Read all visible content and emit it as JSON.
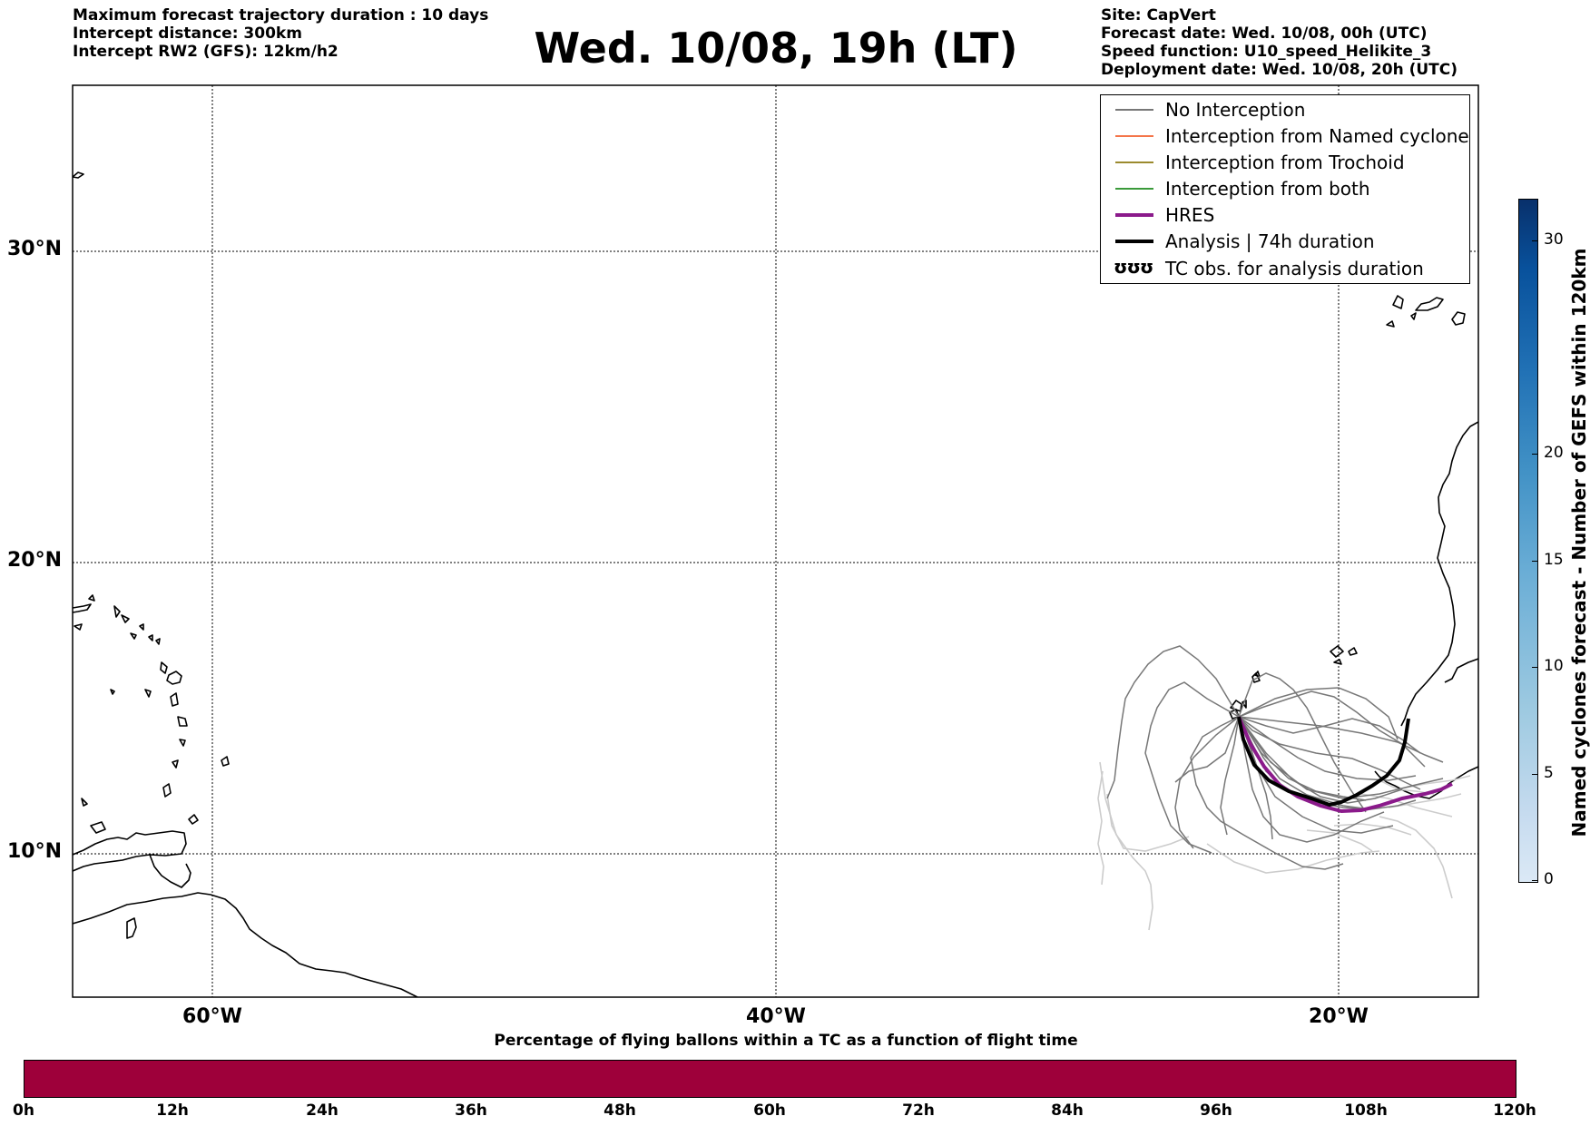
{
  "header": {
    "left_lines": [
      "Maximum forecast trajectory duration : 10 days",
      "Intercept distance: 300km",
      "Intercept RW2 (GFS):  12km/h2"
    ],
    "title": "Wed. 10/08, 19h (LT)",
    "right_lines": [
      "Site: CapVert",
      "Forecast date: Wed. 10/08, 00h (UTC)",
      "Speed function: U10_speed_Helikite_3",
      "Deployment date: Wed. 10/08, 20h (UTC)"
    ]
  },
  "map": {
    "lat_labels": [
      "30°N",
      "20°N",
      "10°N"
    ],
    "lon_labels": [
      "60°W",
      "40°W",
      "20°W"
    ],
    "gridlines": true
  },
  "legend": {
    "items": [
      {
        "label": "No Interception",
        "color": "#777777",
        "width": 1.5
      },
      {
        "label": "Interception from Named cyclone",
        "color": "#f4754a",
        "width": 1.5
      },
      {
        "label": "Interception from Trochoid",
        "color": "#9b8a2e",
        "width": 1.5
      },
      {
        "label": "Interception from both",
        "color": "#3a9a3a",
        "width": 1.5
      },
      {
        "label": "HRES",
        "color": "#8b1a8b",
        "width": 4
      },
      {
        "label": "Analysis | 74h duration",
        "color": "#000000",
        "width": 4
      },
      {
        "label": "TC obs. for analysis duration",
        "symbol": "ʊʊʊ"
      }
    ]
  },
  "vertical_colorbar": {
    "label": "Named cyclones forecast - Number of GEFS within 120km",
    "ticks": [
      "30",
      "20",
      "15",
      "10",
      "5",
      "0"
    ],
    "tick_values": [
      30,
      20,
      15,
      10,
      5,
      0
    ],
    "max": 32,
    "colors": [
      "#dbe9f6",
      "#c6dbef",
      "#9ecae1",
      "#6baed6",
      "#4292c6",
      "#2171b5",
      "#08519c",
      "#08306b"
    ]
  },
  "horizontal_colorbar": {
    "title": "Percentage of flying ballons within a TC as a function of flight time",
    "ticks": [
      "0h",
      "12h",
      "24h",
      "36h",
      "48h",
      "60h",
      "72h",
      "84h",
      "96h",
      "108h",
      "120h"
    ],
    "color": "#9e003a"
  }
}
